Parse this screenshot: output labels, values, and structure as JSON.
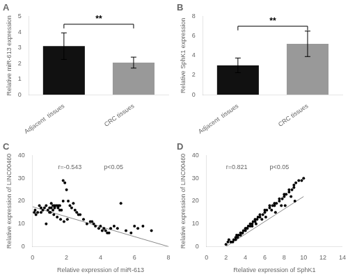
{
  "chart_data": [
    {
      "type": "bar",
      "title": "A",
      "categories": [
        "Adjacent  tissues",
        "CRC tissues"
      ],
      "values": [
        3.1,
        2.05
      ],
      "errors": [
        0.85,
        0.35
      ],
      "colors": [
        "#111111",
        "#999999"
      ],
      "ylabel": "Relative miR-613 expression",
      "ylim": [
        0,
        5
      ],
      "yticks": [
        0,
        1,
        2,
        3,
        4,
        5
      ],
      "grid": false,
      "annotations": [
        {
          "text": "**",
          "y": 4.5
        }
      ]
    },
    {
      "type": "bar",
      "title": "B",
      "categories": [
        "Adjacent  tissues",
        "CRC tissues"
      ],
      "values": [
        3.0,
        5.2
      ],
      "errors": [
        0.75,
        1.3
      ],
      "colors": [
        "#111111",
        "#999999"
      ],
      "ylabel": "Relative SphK1 expression",
      "ylim": [
        0,
        8
      ],
      "yticks": [
        0,
        2,
        4,
        6,
        8
      ],
      "grid": false,
      "annotations": [
        {
          "text": "**",
          "y": 7.0
        }
      ]
    },
    {
      "type": "scatter",
      "title": "C",
      "xlabel": "Relative expression of miR-613",
      "ylabel": "Relative expression of LINC00460",
      "xlim": [
        0,
        8
      ],
      "ylim": [
        0,
        40
      ],
      "xticks": [
        0,
        2,
        4,
        6,
        8
      ],
      "yticks": [
        0,
        10,
        20,
        30,
        40
      ],
      "grid": false,
      "series": [
        {
          "type": "scatter",
          "color": "#000000",
          "x": [
            0.1,
            0.2,
            0.3,
            0.4,
            0.5,
            0.6,
            0.7,
            0.8,
            0.9,
            1.0,
            1.0,
            1.1,
            1.1,
            1.2,
            1.2,
            1.3,
            1.3,
            1.4,
            1.5,
            1.5,
            1.6,
            1.6,
            1.7,
            1.8,
            1.8,
            1.9,
            2.0,
            2.1,
            2.2,
            2.3,
            2.4,
            2.5,
            2.6,
            2.7,
            2.8,
            3.0,
            3.2,
            3.4,
            3.5,
            3.6,
            3.7,
            3.9,
            4.0,
            4.1,
            4.2,
            4.3,
            4.4,
            4.5,
            4.6,
            4.8,
            5.0,
            5.2,
            5.5,
            5.8,
            6.0,
            6.2,
            6.5,
            7.0,
            0.15,
            0.5,
            0.8,
            1.05,
            1.25,
            1.45,
            1.65,
            1.85,
            2.05
          ],
          "values": [
            15,
            14,
            15,
            18,
            17,
            16,
            17,
            18,
            16,
            15,
            17,
            17,
            19,
            16,
            18,
            18,
            17,
            18,
            18,
            17,
            18,
            16,
            16,
            29,
            20,
            28,
            25,
            20,
            18,
            17,
            19,
            16,
            15,
            14,
            14,
            12,
            10,
            11,
            11,
            10,
            9,
            8,
            9,
            7,
            8,
            7,
            6,
            6,
            8,
            9,
            8,
            19,
            7,
            6,
            9,
            8,
            9,
            7,
            16,
            15,
            10,
            15,
            14,
            13,
            12,
            11,
            12
          ]
        },
        {
          "type": "line",
          "color": "#888888",
          "x": [
            0,
            8
          ],
          "values": [
            17.5,
            0
          ]
        }
      ],
      "annotations": [
        {
          "text": "r=-0.543",
          "x": 1.5,
          "y": 34,
          "color": "#666666"
        },
        {
          "text": "p<0.05",
          "x": 4.2,
          "y": 34,
          "color": "#666666"
        }
      ]
    },
    {
      "type": "scatter",
      "title": "D",
      "xlabel": "Relative expression of SphK1",
      "ylabel": "Relative expression of LINC00460",
      "xlim": [
        0,
        14
      ],
      "ylim": [
        0,
        40
      ],
      "xticks": [
        0,
        2,
        4,
        6,
        8,
        10,
        12,
        14
      ],
      "yticks": [
        0,
        10,
        20,
        30,
        40
      ],
      "grid": false,
      "series": [
        {
          "type": "scatter",
          "color": "#000000",
          "x": [
            2.0,
            2.2,
            2.5,
            2.8,
            3.0,
            3.0,
            3.2,
            3.3,
            3.5,
            3.5,
            3.7,
            3.8,
            4.0,
            4.0,
            4.2,
            4.3,
            4.5,
            4.5,
            4.7,
            4.8,
            5.0,
            5.0,
            5.2,
            5.3,
            5.5,
            5.5,
            5.8,
            6.0,
            6.0,
            6.2,
            6.5,
            6.5,
            6.8,
            7.0,
            7.0,
            7.2,
            7.5,
            7.5,
            7.8,
            8.0,
            8.0,
            8.2,
            8.5,
            8.5,
            8.8,
            9.0,
            9.0,
            9.2,
            9.5,
            9.8,
            10.0,
            2.3,
            3.1,
            4.1,
            5.1,
            6.1,
            7.1,
            8.1,
            9.1,
            2.7,
            3.7,
            4.7,
            5.7,
            6.7,
            7.7,
            8.7
          ],
          "values": [
            1,
            2,
            2,
            3,
            3,
            4,
            4,
            5,
            5,
            6,
            6,
            7,
            7,
            8,
            8,
            9,
            9,
            10,
            10,
            11,
            11,
            12,
            12,
            13,
            13,
            14,
            14,
            15,
            16,
            16,
            17,
            18,
            18,
            18,
            19,
            19,
            20,
            21,
            21,
            22,
            23,
            23,
            24,
            25,
            25,
            26,
            27,
            28,
            29,
            29,
            30,
            3,
            5,
            8,
            10,
            13,
            15,
            18,
            20,
            2,
            6,
            9,
            12,
            16,
            18,
            22
          ]
        },
        {
          "type": "line",
          "color": "#888888",
          "x": [
            2,
            10
          ],
          "values": [
            0,
            22
          ]
        }
      ],
      "annotations": [
        {
          "text": "r=0.821",
          "x": 2.0,
          "y": 34,
          "color": "#666666"
        },
        {
          "text": "p<0.05",
          "x": 6.5,
          "y": 34,
          "color": "#666666"
        }
      ]
    }
  ]
}
